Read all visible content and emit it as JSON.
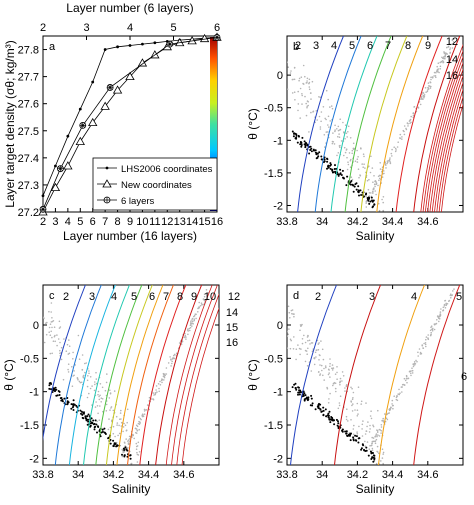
{
  "chart_data": [
    {
      "panel": "a",
      "type": "line",
      "xlabel": "Layer number (16 layers)",
      "x2label": "Layer number (6 layers)",
      "ylabel": "Layer target density (σθ; kg/m³)",
      "xlim": [
        2,
        16
      ],
      "ylim": [
        27.2,
        27.85
      ],
      "xticks": [
        2,
        3,
        4,
        5,
        6,
        7,
        8,
        9,
        10,
        11,
        12,
        13,
        14,
        15,
        16
      ],
      "yticks": [
        27.2,
        27.3,
        27.4,
        27.5,
        27.6,
        27.7,
        27.8
      ],
      "x2ticks": [
        2,
        3,
        4,
        5,
        6
      ],
      "legend_position": "lower-right",
      "series": [
        {
          "name": "LHS2006 coordinates",
          "marker": "dot",
          "x": [
            2,
            3,
            4,
            5,
            6,
            7,
            8,
            9,
            10,
            11,
            12,
            13,
            14,
            15,
            16
          ],
          "y": [
            27.26,
            27.37,
            27.48,
            27.58,
            27.68,
            27.8,
            27.81,
            27.815,
            27.82,
            27.825,
            27.83,
            27.835,
            27.838,
            27.842,
            27.845
          ]
        },
        {
          "name": "New coordinates",
          "marker": "triangle",
          "x": [
            2,
            3,
            4,
            5,
            6,
            7,
            8,
            9,
            10,
            11,
            12,
            13,
            14,
            15,
            16
          ],
          "y": [
            27.2,
            27.29,
            27.37,
            27.46,
            27.53,
            27.59,
            27.65,
            27.7,
            27.75,
            27.78,
            27.81,
            27.825,
            27.832,
            27.84,
            27.845
          ]
        },
        {
          "name": "6 layers",
          "marker": "star",
          "x": [
            2,
            3.4,
            5.2,
            7.4,
            12.2,
            16
          ],
          "y": [
            27.21,
            27.36,
            27.52,
            27.66,
            27.82,
            27.845
          ]
        }
      ]
    },
    {
      "panel": "b",
      "type": "scatter",
      "xlabel": "Salinity",
      "ylabel": "θ (°C)",
      "xlim": [
        33.8,
        34.8
      ],
      "ylim": [
        -2.1,
        0.6
      ],
      "xticks": [
        33.8,
        34,
        34.2,
        34.4,
        34.6
      ],
      "yticks": [
        -2,
        -1.5,
        -1,
        -0.5,
        0
      ],
      "isopycnal_labels": [
        "2",
        "3",
        "4",
        "5",
        "6",
        "7",
        "8",
        "9",
        "12",
        "14",
        "16"
      ]
    },
    {
      "panel": "c",
      "type": "scatter",
      "xlabel": "Salinity",
      "ylabel": "θ (°C)",
      "xlim": [
        33.8,
        34.8
      ],
      "ylim": [
        -2.1,
        0.6
      ],
      "xticks": [
        33.8,
        34,
        34.2,
        34.4,
        34.6
      ],
      "yticks": [
        -2,
        -1.5,
        -1,
        -0.5,
        0
      ],
      "isopycnal_labels": [
        "2",
        "3",
        "4",
        "5",
        "6",
        "7",
        "8",
        "9",
        "10",
        "12",
        "14",
        "15",
        "16"
      ]
    },
    {
      "panel": "d",
      "type": "scatter",
      "xlabel": "Salinity",
      "ylabel": "θ (°C)",
      "xlim": [
        33.8,
        34.8
      ],
      "ylim": [
        -2.1,
        0.6
      ],
      "xticks": [
        33.8,
        34,
        34.2,
        34.4,
        34.6
      ],
      "yticks": [
        -2,
        -1.5,
        -1,
        -0.5,
        0
      ],
      "isopycnal_labels": [
        "2",
        "3",
        "4",
        "5",
        "6"
      ]
    }
  ],
  "panel_letters": [
    "a",
    "b",
    "c",
    "d"
  ],
  "legend": [
    "LHS2006 coordinates",
    "New coordinates",
    "6 layers"
  ],
  "colors": {
    "axis": "#000000",
    "scatter_gray": "#b4b4b4",
    "scatter_black": "#000000",
    "isopycnal_ramp": [
      "#2040c0",
      "#1e78d8",
      "#18b4e0",
      "#20c8b0",
      "#50c040",
      "#c8c820",
      "#f0a010",
      "#f06010",
      "#e02020",
      "#c81010"
    ]
  }
}
